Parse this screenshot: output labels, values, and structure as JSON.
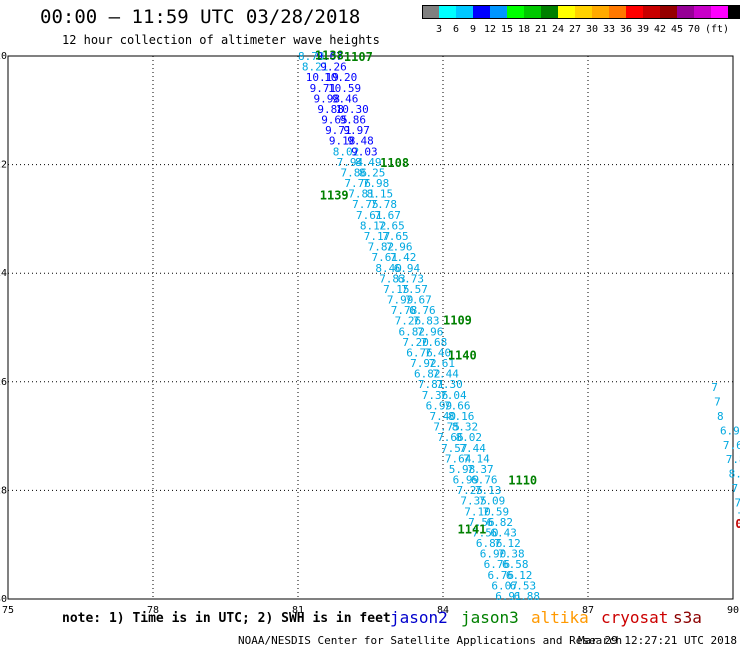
{
  "header": {
    "title": "00:00 – 11:59 UTC 03/28/2018",
    "subtitle": "12 hour collection of altimeter wave heights"
  },
  "legend": {
    "unit": "(ft)",
    "colors": [
      "#808080",
      "#00ffff",
      "#00c8ff",
      "#0000ff",
      "#0096ff",
      "#00ff00",
      "#00c800",
      "#008000",
      "#ffff00",
      "#ffd200",
      "#ffaa00",
      "#ff7800",
      "#ff0000",
      "#c80000",
      "#960000",
      "#960096",
      "#c800c8",
      "#ff00ff",
      "#000000"
    ],
    "levels": [
      "3",
      "6",
      "9",
      "12",
      "15",
      "18",
      "21",
      "24",
      "27",
      "30",
      "33",
      "36",
      "39",
      "42",
      "45",
      "70"
    ]
  },
  "map": {
    "lon_ticks": [
      "75",
      "78",
      "81",
      "84",
      "87",
      "90"
    ],
    "lat_ticks": [
      "-20",
      "-22",
      "-24",
      "-26",
      "-28",
      "-30"
    ],
    "lon_range": [
      75,
      90
    ],
    "lat_range": [
      -20,
      -30
    ],
    "grid": "dotted"
  },
  "tracks": {
    "track_a": {
      "color": "#00a8e0",
      "lon_start": 81.0,
      "lon_step": 0.08,
      "lat_start": -20.0,
      "lat_step": -0.195,
      "labels": [
        "8.73",
        "8.21",
        "10.19",
        "9.71",
        "9.98",
        "9.88",
        "9.65",
        "9.71",
        "9.18",
        "8.02",
        "7.94",
        "7.86",
        "7.76",
        "7.81",
        "7.75",
        "7.61",
        "8.12",
        "7.17",
        "7.82",
        "7.61",
        "8.40",
        "7.83",
        "7.15",
        "7.99",
        "7.78",
        "7.26",
        "6.82",
        "7.20",
        "6.76",
        "7.92",
        "6.82",
        "7.81",
        "7.36",
        "6.99",
        "7.40",
        "7.75",
        "7.66",
        "7.57",
        "7.64",
        "5.98",
        "6.99",
        "7.25",
        "7.35",
        "7.10",
        "7.56",
        "7.50",
        "6.86",
        "6.90",
        "6.76",
        "6.76",
        "6.07",
        "6.91"
      ]
    },
    "track_b": {
      "lon_start": 81.38,
      "lon_step": 0.08,
      "lat_start": -20.0,
      "lat_step": -0.195,
      "labels": [
        "9.07",
        "9.26",
        "10.20",
        "10.59",
        "9.46",
        "10.30",
        "9.86",
        "9.97",
        "9.48",
        "9.03",
        "8.49",
        "8.25",
        "7.98",
        "8.15",
        "7.78",
        "7.67",
        "7.65",
        "7.65",
        "7.96",
        "7.42",
        "6.94",
        "6.73",
        "7.57",
        "7.67",
        "6.76",
        "7.83",
        "7.96",
        "7.68",
        "7.40",
        "7.61",
        "7.44",
        "7.30",
        "7.04",
        "7.66",
        "8.16",
        "8.32",
        "8.02",
        "7.44",
        "7.14",
        "7.37",
        "6.76",
        "7.13",
        "7.09",
        "7.59",
        "6.82",
        "6.43",
        "7.12",
        "7.38",
        "6.58",
        "6.12",
        "6.53",
        "6.88"
      ]
    },
    "track_c": {
      "color": "#00a8e0",
      "lon": 89.55,
      "lon_step": 0.06,
      "lat_start": -26.1,
      "lat_step": -0.265,
      "labels": [
        "7",
        "7",
        "8",
        "6.9",
        "7.6",
        "7.89",
        "8.02",
        "7.78",
        "7.30",
        "7.17",
        "8.63",
        "8.18",
        "7.22",
        "7.21",
        "7.74",
        "6.85",
        "7.78"
      ]
    }
  },
  "pass_labels": [
    {
      "text": "1138",
      "color": "#008000",
      "lon": 81.35,
      "lat": -19.97
    },
    {
      "text": "1107",
      "color": "#008000",
      "lon": 81.95,
      "lat": -20.0
    },
    {
      "text": "1108",
      "color": "#008000",
      "lon": 82.7,
      "lat": -21.95
    },
    {
      "text": "1139",
      "color": "#008000",
      "lon": 81.45,
      "lat": -22.55
    },
    {
      "text": "1109",
      "color": "#008000",
      "lon": 84.0,
      "lat": -24.85
    },
    {
      "text": "1140",
      "color": "#008000",
      "lon": 84.1,
      "lat": -25.5
    },
    {
      "text": "1110",
      "color": "#008000",
      "lon": 85.35,
      "lat": -27.8
    },
    {
      "text": "1141",
      "color": "#008000",
      "lon": 84.3,
      "lat": -28.7
    },
    {
      "text": "0",
      "color": "#c00000",
      "lon": 90.05,
      "lat": -28.6
    }
  ],
  "footer": {
    "note": "note: 1) Time is in UTC; 2) SWH is in feet",
    "satellites": [
      {
        "name": "jason2",
        "color": "#0000cc",
        "x": 390
      },
      {
        "name": "jason3",
        "color": "#008000",
        "x": 461
      },
      {
        "name": "altika",
        "color": "#ff9900",
        "x": 531
      },
      {
        "name": "cryosat",
        "color": "#cc0000",
        "x": 601
      },
      {
        "name": "s3a",
        "color": "#8b0000",
        "x": 673
      }
    ],
    "credit": "NOAA/NESDIS Center for Satellite Applications and Research",
    "timestamp": "Mar 29 12:27:21 UTC 2018"
  }
}
